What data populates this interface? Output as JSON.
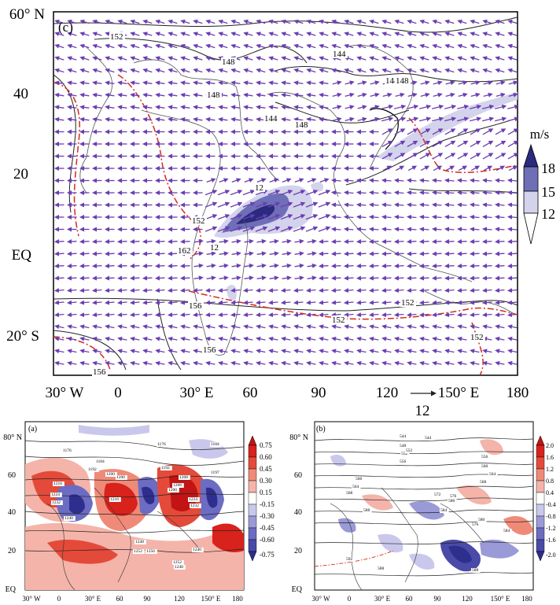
{
  "panel_c": {
    "label": "(c)",
    "y_ticks": [
      "60° N",
      "40",
      "20",
      "EQ",
      "20° S"
    ],
    "x_ticks": [
      "30° W",
      "0",
      "30° E",
      "60",
      "90",
      "120",
      "150° E",
      "180"
    ],
    "vector_ref": "12",
    "contours": [
      "152",
      "148",
      "144",
      "144",
      "148",
      "144",
      "148",
      "148",
      "12",
      "152",
      "162",
      "12",
      "156",
      "152",
      "152",
      "152",
      "156",
      "156"
    ],
    "colorbar": {
      "unit": "m/s",
      "levels": [
        "18",
        "15",
        "12"
      ],
      "colors": [
        "#2a2a7e",
        "#6f6fb8",
        "#d4d3ec"
      ]
    }
  },
  "panel_a": {
    "label": "(a)",
    "y_ticks": [
      "80° N",
      "60",
      "40",
      "20",
      "EQ"
    ],
    "x_ticks": [
      "30° W",
      "0",
      "30° E",
      "60",
      "90",
      "120",
      "150° E",
      "180"
    ],
    "contours": [
      "1176",
      "1184",
      "1176",
      "1184",
      "1192",
      "1192",
      "1200",
      "1208",
      "1216",
      "1224",
      "1232",
      "1240",
      "1208",
      "1200",
      "1216",
      "1224",
      "1232",
      "1248",
      "1252",
      "1256",
      "1252",
      "1248",
      "1240",
      "1197",
      "1200"
    ],
    "colorbar": {
      "levels": [
        "0.75",
        "0.60",
        "0.45",
        "0.30",
        "0.15",
        "-0.15",
        "-0.30",
        "-0.45",
        "-0.60",
        "-0.75"
      ]
    }
  },
  "panel_b": {
    "label": "(b)",
    "y_ticks": [
      "80° N",
      "60",
      "40",
      "20",
      "EQ"
    ],
    "x_ticks": [
      "30° W",
      "0",
      "30° E",
      "60",
      "90",
      "120",
      "150° E",
      "180"
    ],
    "contours": [
      "544",
      "548",
      "552",
      "556",
      "560",
      "564",
      "568",
      "572",
      "576",
      "580",
      "584",
      "588",
      "592",
      "588",
      "588",
      "576",
      "580",
      "584",
      "568",
      "564",
      "560",
      "556",
      "552",
      "544"
    ],
    "colorbar": {
      "levels": [
        "2.0",
        "1.6",
        "1.2",
        "0.8",
        "0.4",
        "-0.4",
        "-0.8",
        "-1.2",
        "-1.6",
        "-2.0"
      ]
    }
  }
}
